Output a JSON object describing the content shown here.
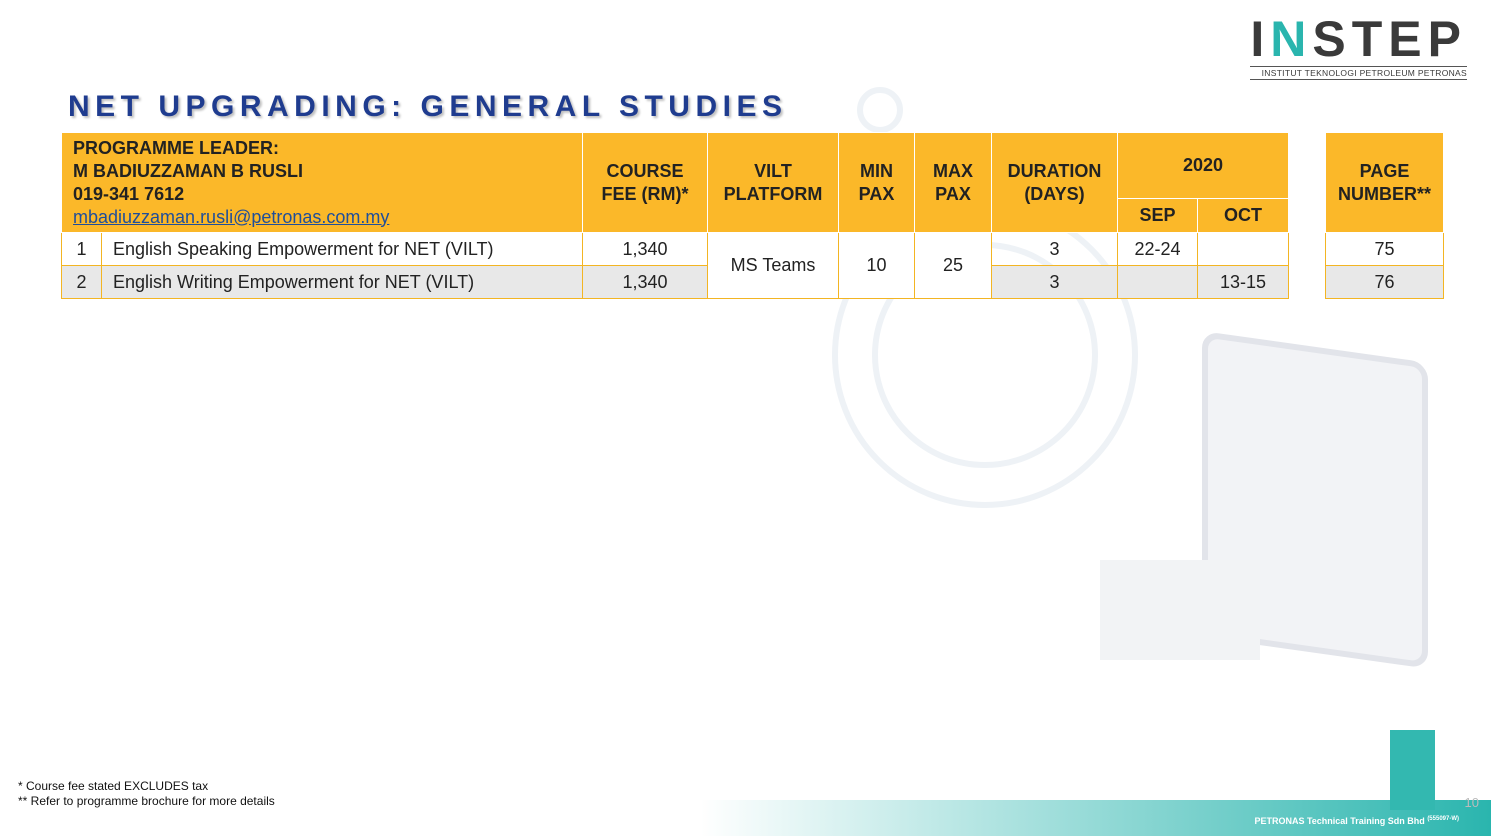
{
  "logo": {
    "name": "INSTEP",
    "tagline": "INSTITUT TEKNOLOGI PETROLEUM PETRONAS"
  },
  "title": "NET UPGRADING: GENERAL STUDIES",
  "table": {
    "leader": {
      "label": "PROGRAMME LEADER:",
      "name": "M BADIUZZAMAN B RUSLI",
      "phone": "019-341 7612",
      "email": "mbadiuzzaman.rusli@petronas.com.my"
    },
    "headers": {
      "fee": [
        "COURSE",
        "FEE (RM)*"
      ],
      "platform": [
        "VILT",
        "PLATFORM"
      ],
      "min_pax": [
        "MIN",
        "PAX"
      ],
      "max_pax": [
        "MAX",
        "PAX"
      ],
      "duration": [
        "DURATION",
        "(DAYS)"
      ],
      "year": "2020",
      "months": [
        "SEP",
        "OCT"
      ],
      "page": [
        "PAGE",
        "NUMBER**"
      ]
    },
    "shared": {
      "platform": "MS Teams",
      "min_pax": "10",
      "max_pax": "25"
    },
    "rows": [
      {
        "no": "1",
        "course": "English Speaking Empowerment for NET (VILT)",
        "fee": "1,340",
        "duration": "3",
        "sep": "22-24",
        "page": "75"
      },
      {
        "no": "2",
        "course": "English Writing Empowerment for NET (VILT)",
        "fee": "1,340",
        "duration": "3",
        "oct": "13-15",
        "page": "76"
      }
    ]
  },
  "footnotes": [
    "* Course fee stated EXCLUDES tax",
    "** Refer to programme brochure for more details"
  ],
  "footer": {
    "company": "PETRONAS Technical Training Sdn Bhd",
    "reg": "(555097-W)",
    "page": "10"
  }
}
